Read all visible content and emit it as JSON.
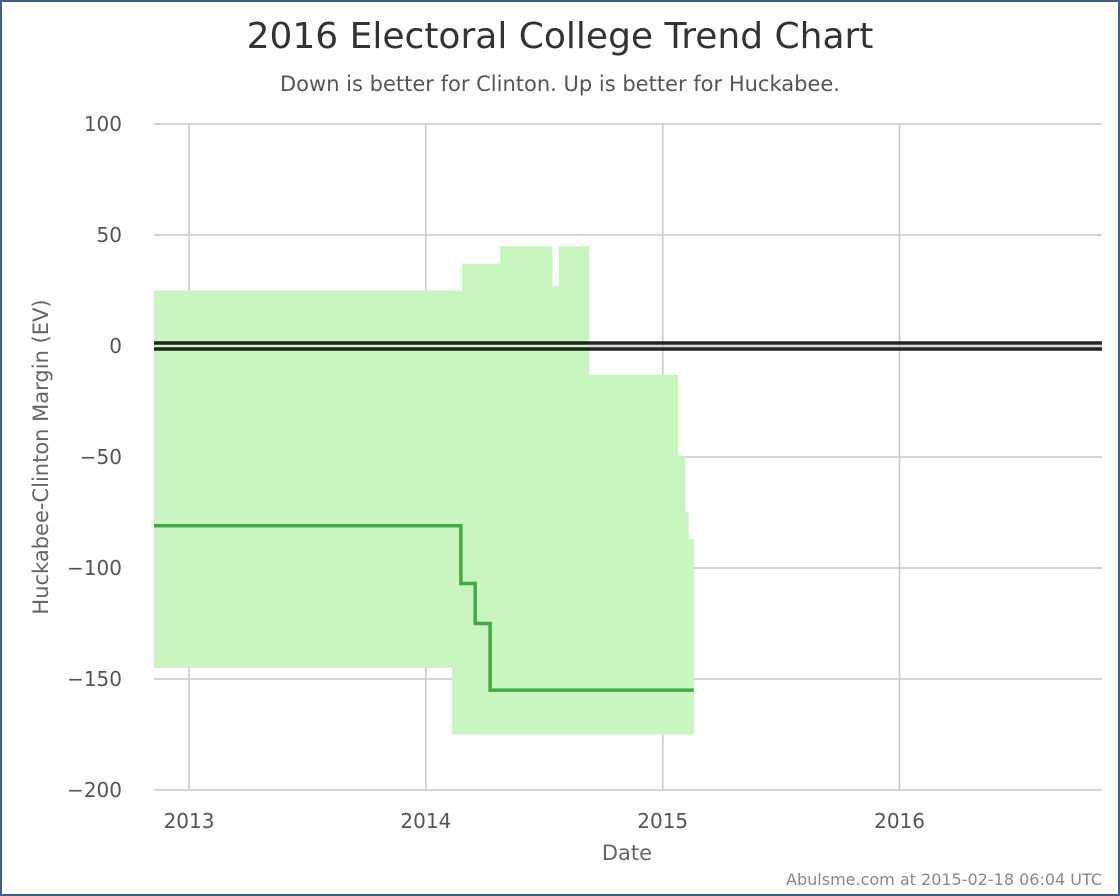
{
  "chart_data": {
    "type": "line",
    "title": "2016 Electoral College Trend Chart",
    "subtitle": "Down is better for Clinton. Up is better for Huckabee.",
    "xlabel": "Date",
    "ylabel": "Huckabee-Clinton Margin (EV)",
    "xlim": [
      "2012-11-08",
      "2016-11-08"
    ],
    "ylim": [
      -200,
      100
    ],
    "x_ticks": [
      "2013",
      "2014",
      "2015",
      "2016"
    ],
    "y_ticks": [
      100,
      50,
      0,
      -50,
      -100,
      -150,
      -200
    ],
    "grid": true,
    "legend": "none",
    "reference_line": {
      "y": 0,
      "color": "#000000"
    },
    "series": [
      {
        "type": "area",
        "color": "#c8f5c0",
        "points": [
          {
            "x": "2012-11-08",
            "lo": -145,
            "hi": 25
          },
          {
            "x": "2014-02-10",
            "lo": -175,
            "hi": 25
          },
          {
            "x": "2014-02-25",
            "lo": -175,
            "hi": 37
          },
          {
            "x": "2014-04-25",
            "lo": -175,
            "hi": 45
          },
          {
            "x": "2014-07-15",
            "lo": -175,
            "hi": 27
          },
          {
            "x": "2014-07-25",
            "lo": -175,
            "hi": 45
          },
          {
            "x": "2014-09-10",
            "lo": -175,
            "hi": -13
          },
          {
            "x": "2015-01-25",
            "lo": -175,
            "hi": -50
          },
          {
            "x": "2015-02-05",
            "lo": -175,
            "hi": -75
          },
          {
            "x": "2015-02-10",
            "lo": -175,
            "hi": -87
          },
          {
            "x": "2015-02-18",
            "lo": -175,
            "hi": -87
          }
        ]
      },
      {
        "type": "line",
        "color": "#44aa44",
        "points": [
          {
            "x": "2012-11-08",
            "y": -81
          },
          {
            "x": "2014-02-24",
            "y": -107
          },
          {
            "x": "2014-03-18",
            "y": -125
          },
          {
            "x": "2014-04-10",
            "y": -155
          },
          {
            "x": "2015-02-18",
            "y": -155
          }
        ]
      }
    ]
  },
  "credit": "Abulsme.com at 2015-02-18 06:04 UTC"
}
